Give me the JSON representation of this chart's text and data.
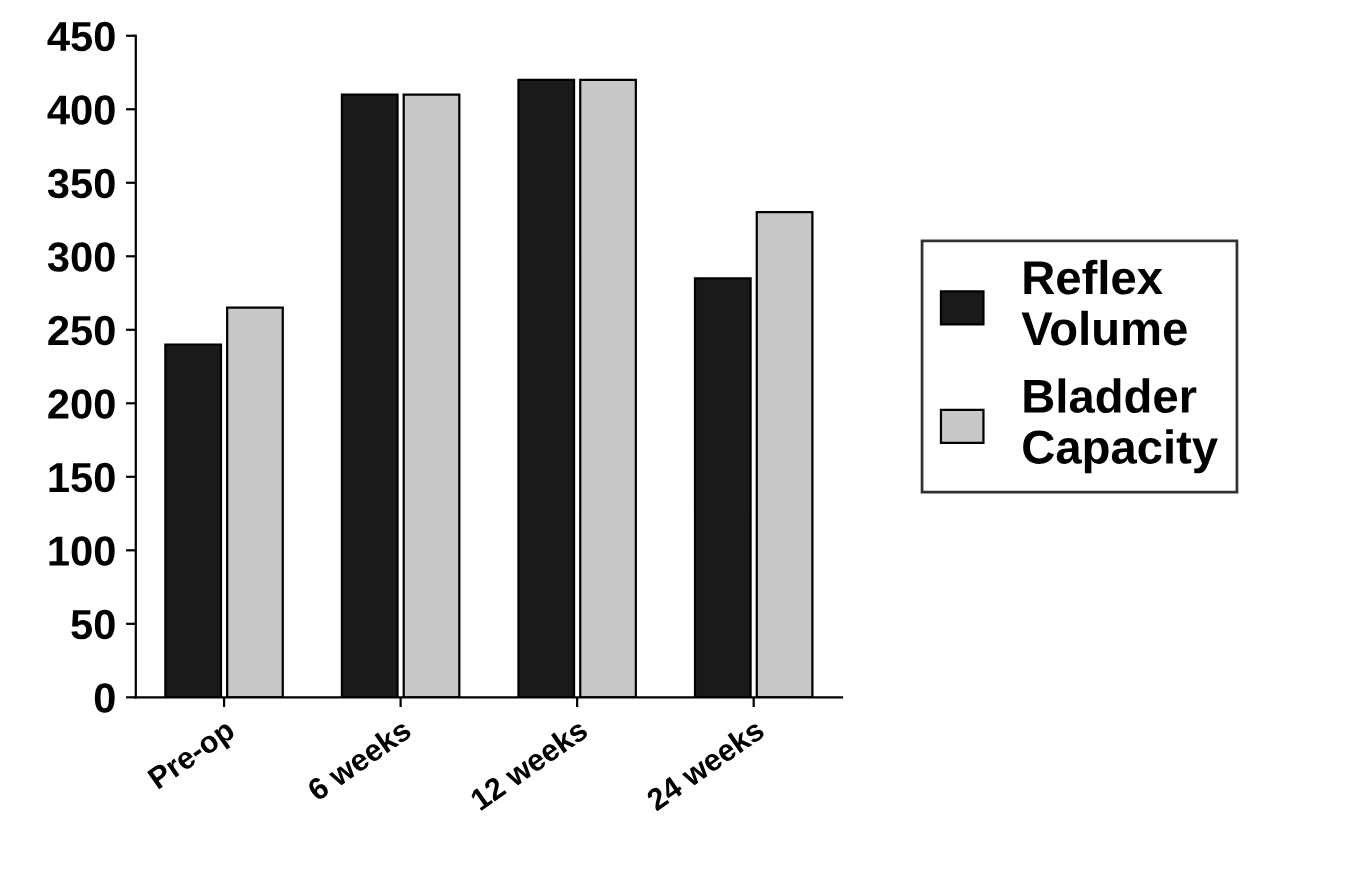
{
  "chart_data": {
    "type": "bar",
    "categories": [
      "Pre-op",
      "6 weeks",
      "12 weeks",
      "24 weeks"
    ],
    "series": [
      {
        "name": "Reflex Volume",
        "color": "#1a1a1a",
        "values": [
          240,
          410,
          420,
          285
        ]
      },
      {
        "name": "Bladder Capacity",
        "color": "#c8c8c8",
        "values": [
          265,
          410,
          420,
          330
        ]
      }
    ],
    "ylim": [
      0,
      450
    ],
    "yticks": [
      0,
      50,
      100,
      150,
      200,
      250,
      300,
      350,
      400,
      450
    ],
    "grid": false,
    "legend": "right"
  }
}
